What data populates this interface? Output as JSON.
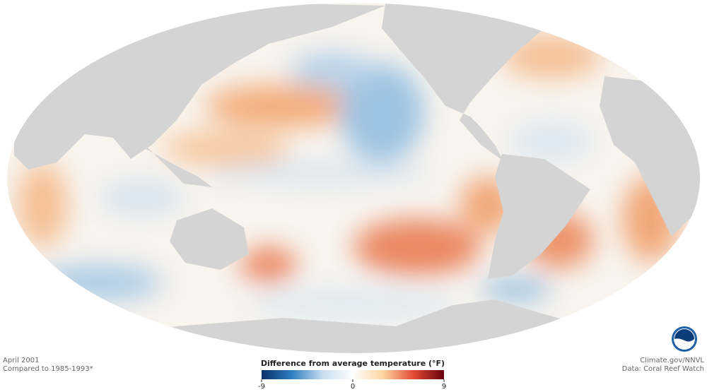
{
  "map": {
    "date": "April 2001",
    "baseline": "Compared to 1985-1993*",
    "credit": "Climate.gov/NNVL",
    "source": "Data: Coral Reef Watch",
    "legend": {
      "title": "Difference from average temperature (°F)",
      "range": [
        -9,
        9
      ],
      "ticks": [
        -9,
        0,
        9
      ],
      "colors": [
        "#08306b",
        "#2f7fc1",
        "#c6dcef",
        "#ffffff",
        "#fdd49e",
        "#e34a33",
        "#67000d"
      ]
    }
  }
}
